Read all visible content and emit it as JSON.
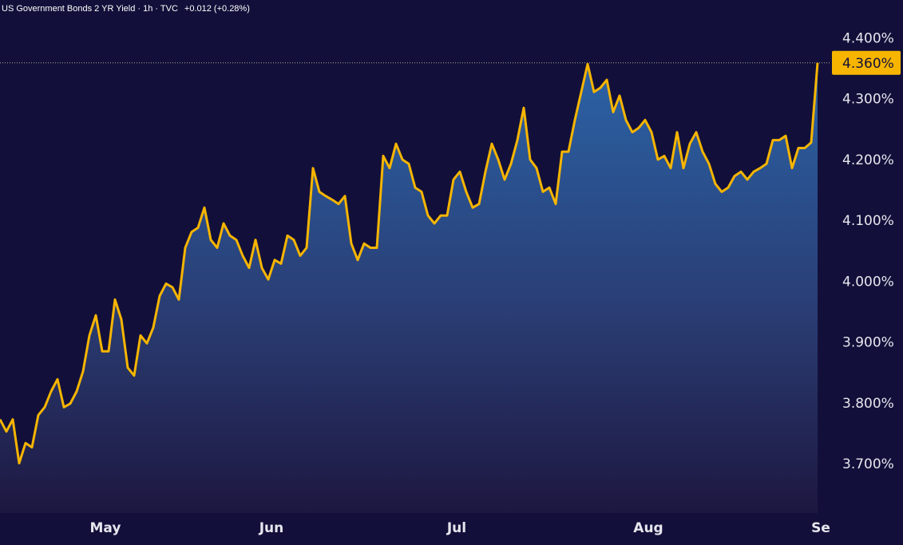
{
  "chart_data": {
    "type": "area",
    "title": "US Government Bonds 2 YR Yield · 1h · TVC",
    "change": "+0.012 (+0.28%)",
    "change_color": "#f7b500",
    "color": "#f7b500",
    "categories": [
      null,
      null,
      null,
      null,
      null,
      null,
      null,
      null,
      null,
      null,
      null,
      null,
      null,
      null,
      null,
      null,
      "May",
      null,
      null,
      null,
      null,
      null,
      null,
      null,
      null,
      null,
      null,
      null,
      null,
      null,
      null,
      null,
      null,
      null,
      null,
      null,
      null,
      null,
      null,
      null,
      null,
      null,
      "Jun",
      null,
      null,
      null,
      null,
      null,
      null,
      null,
      null,
      null,
      null,
      null,
      null,
      null,
      null,
      null,
      null,
      null,
      null,
      null,
      null,
      null,
      null,
      null,
      null,
      null,
      null,
      null,
      null,
      "Jul",
      null,
      null,
      null,
      null,
      null,
      null,
      null,
      null,
      null,
      null,
      null,
      null,
      null,
      null,
      null,
      null,
      null,
      null,
      null,
      null,
      null,
      null,
      null,
      null,
      null,
      null,
      null,
      null,
      null,
      "Aug",
      null,
      null,
      null,
      null,
      null,
      null,
      null,
      null,
      null,
      null,
      null,
      null,
      null,
      null,
      null,
      null,
      null,
      null,
      null,
      null,
      null,
      null,
      null,
      null,
      null,
      null,
      "Se"
    ],
    "values": [
      3.774,
      3.754,
      3.774,
      3.702,
      3.735,
      3.728,
      3.781,
      3.794,
      3.82,
      3.84,
      3.794,
      3.8,
      3.82,
      3.853,
      3.912,
      3.945,
      3.886,
      3.886,
      3.971,
      3.938,
      3.859,
      3.846,
      3.912,
      3.899,
      3.925,
      3.977,
      3.997,
      3.991,
      3.971,
      4.056,
      4.082,
      4.089,
      4.122,
      4.069,
      4.056,
      4.096,
      4.076,
      4.069,
      4.043,
      4.023,
      4.069,
      4.023,
      4.004,
      4.036,
      4.03,
      4.076,
      4.069,
      4.043,
      4.056,
      4.187,
      4.148,
      4.141,
      4.135,
      4.128,
      4.141,
      4.063,
      4.036,
      4.063,
      4.056,
      4.056,
      4.207,
      4.187,
      4.227,
      4.201,
      4.194,
      4.155,
      4.148,
      4.109,
      4.096,
      4.109,
      4.109,
      4.168,
      4.181,
      4.148,
      4.122,
      4.128,
      4.181,
      4.227,
      4.201,
      4.168,
      4.194,
      4.233,
      4.286,
      4.201,
      4.187,
      4.148,
      4.155,
      4.128,
      4.214,
      4.214,
      4.266,
      4.312,
      4.358,
      4.312,
      4.319,
      4.332,
      4.279,
      4.306,
      4.266,
      4.246,
      4.253,
      4.266,
      4.246,
      4.201,
      4.207,
      4.187,
      4.246,
      4.187,
      4.227,
      4.246,
      4.214,
      4.194,
      4.161,
      4.148,
      4.155,
      4.174,
      4.181,
      4.168,
      4.181,
      4.187,
      4.194,
      4.233,
      4.233,
      4.24,
      4.187,
      4.22,
      4.22,
      4.229,
      4.36
    ],
    "ylim": [
      3.62,
      4.42
    ],
    "yticks": [
      {
        "value": 3.7,
        "label": "3.700%"
      },
      {
        "value": 3.8,
        "label": "3.800%"
      },
      {
        "value": 3.9,
        "label": "3.900%"
      },
      {
        "value": 4.0,
        "label": "4.000%"
      },
      {
        "value": 4.1,
        "label": "4.100%"
      },
      {
        "value": 4.2,
        "label": "4.200%"
      },
      {
        "value": 4.3,
        "label": "4.300%"
      },
      {
        "value": 4.4,
        "label": "4.400%"
      }
    ],
    "last_price": {
      "value": 4.36,
      "label": "4.360%"
    },
    "grid": false
  }
}
